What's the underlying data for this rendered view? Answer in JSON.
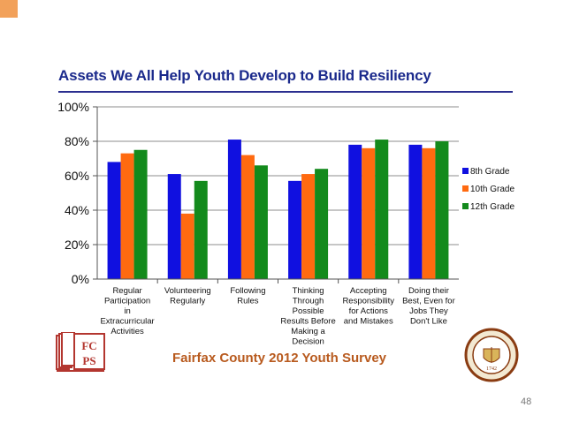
{
  "slide": {
    "title": "Assets We All Help Youth Develop to Build Resiliency",
    "survey_label": "Fairfax County 2012 Youth Survey",
    "page_number": "48",
    "logo_text": "FCPS",
    "seal_text": "1742"
  },
  "colors": {
    "title": "#1b2a8c",
    "survey": "#b85a1e",
    "grade8": "#1010e0",
    "grade10": "#ff6a10",
    "grade12": "#138a1c"
  },
  "chart_data": {
    "type": "bar",
    "title": "",
    "xlabel": "",
    "ylabel": "",
    "ylim": [
      0,
      100
    ],
    "y_ticks": [
      "0%",
      "20%",
      "40%",
      "60%",
      "80%",
      "100%"
    ],
    "grid": true,
    "legend_position": "right",
    "categories": [
      [
        "Regular",
        "Participation",
        "in",
        "Extracurricular",
        "Activities"
      ],
      [
        "Volunteering",
        "Regularly"
      ],
      [
        "Following",
        "Rules"
      ],
      [
        "Thinking",
        "Through",
        "Possible",
        "Results Before",
        "Making a",
        "Decision"
      ],
      [
        "Accepting",
        "Responsibility",
        "for Actions",
        "and Mistakes"
      ],
      [
        "Doing their",
        "Best, Even for",
        "Jobs They",
        "Don't Like"
      ]
    ],
    "series": [
      {
        "name": "8th Grade",
        "color": "#1010e0",
        "values": [
          68,
          61,
          81,
          57,
          78,
          78
        ]
      },
      {
        "name": "10th Grade",
        "color": "#ff6a10",
        "values": [
          73,
          38,
          72,
          61,
          76,
          76
        ]
      },
      {
        "name": "12th Grade",
        "color": "#138a1c",
        "values": [
          75,
          57,
          66,
          64,
          81,
          80
        ]
      }
    ]
  }
}
